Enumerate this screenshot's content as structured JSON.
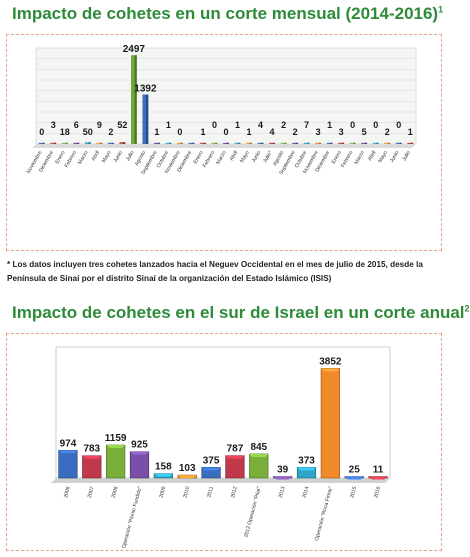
{
  "title_1": "Impacto de cohetes en un corte mensual (2014-2016)",
  "title_1_sup": "1",
  "note": "* Los datos incluyen tres cohetes lanzados hacia el Neguev Occidental en el mes de julio de 2015, desde la Península de Sinaí por el distrito Sinaí de la organización del Estado Islámico (ISIS)",
  "title_2": "Impacto de cohetes en el sur de Israel en un corte anual",
  "title_2_sup": "2",
  "chart_data": [
    {
      "type": "bar",
      "categories": [
        "Noviembre",
        "Diciembre",
        "Enero",
        "Febrero",
        "Marzo",
        "Abril",
        "Mayo",
        "Junio",
        "Julio",
        "Agosto",
        "Septiembre",
        "Octubre",
        "Noviembre",
        "Diciembre",
        "Enero",
        "Febrero",
        "Marzo",
        "Abril",
        "Mayo",
        "Junio",
        "Julio*",
        "Agosto",
        "Septiembre",
        "Octubre",
        "Noviembre",
        "Diciembre",
        "Enero",
        "Febrero",
        "Marzo",
        "Abril",
        "Mayo",
        "Junio",
        "Julio"
      ],
      "values": [
        0,
        3,
        18,
        6,
        50,
        9,
        2,
        52,
        2497,
        1392,
        1,
        1,
        0,
        0,
        1,
        0,
        0,
        1,
        1,
        4,
        4,
        2,
        2,
        7,
        3,
        1,
        3,
        0,
        5,
        0,
        2,
        0,
        1
      ],
      "data_labels": [
        "0",
        "3",
        "18",
        "6",
        "50",
        "9",
        "2",
        "52",
        "2497",
        "1392",
        "1",
        "1",
        "0",
        "",
        "1",
        "0",
        "0",
        "1",
        "1",
        "4",
        "4",
        "2",
        "2",
        "7",
        "3",
        "1",
        "3",
        "0",
        "5",
        "0",
        "2",
        "0",
        "1"
      ],
      "colors": [
        "#4a74c0",
        "#c94a4a",
        "#8cbf50",
        "#7a55a8",
        "#3fb0c8",
        "#f29a3f",
        "#4a74c0",
        "#c94a4a",
        "#6fa83c",
        "#3a6cc0",
        "#7a55a8",
        "#3fb0c8",
        "#f29a3f",
        "#4a74c0",
        "#c94a4a",
        "#8cbf50",
        "#7a55a8",
        "#3fb0c8",
        "#f29a3f",
        "#4a74c0",
        "#c94a4a",
        "#8cbf50",
        "#7a55a8",
        "#3fb0c8",
        "#f29a3f",
        "#4a74c0",
        "#c94a4a",
        "#8cbf50",
        "#7a55a8",
        "#3fb0c8",
        "#f29a3f",
        "#4a74c0",
        "#c94a4a"
      ],
      "ylim": [
        0,
        2700
      ],
      "grid": true
    },
    {
      "type": "bar",
      "categories": [
        "2006",
        "2007",
        "2008",
        "Operación \"Plomo Fundido\"",
        "2009",
        "2010",
        "2011",
        "2012",
        "2012 Operación \"Pilar\"",
        "2013",
        "2014",
        "Operación \"Roca Firme\"",
        "2015",
        "2016"
      ],
      "values": [
        974,
        783,
        1159,
        925,
        158,
        103,
        375,
        787,
        845,
        39,
        373,
        3852,
        25,
        11
      ],
      "colors": [
        "#3a6cc0",
        "#c0394a",
        "#7aae3a",
        "#7a4fa8",
        "#2fa6c8",
        "#f08a2a",
        "#3a6cc0",
        "#c0394a",
        "#7aae3a",
        "#7a4fa8",
        "#2fa6c8",
        "#f08a2a",
        "#3a6cc0",
        "#c0394a"
      ],
      "ylim": [
        0,
        3900
      ],
      "grid": false
    }
  ]
}
